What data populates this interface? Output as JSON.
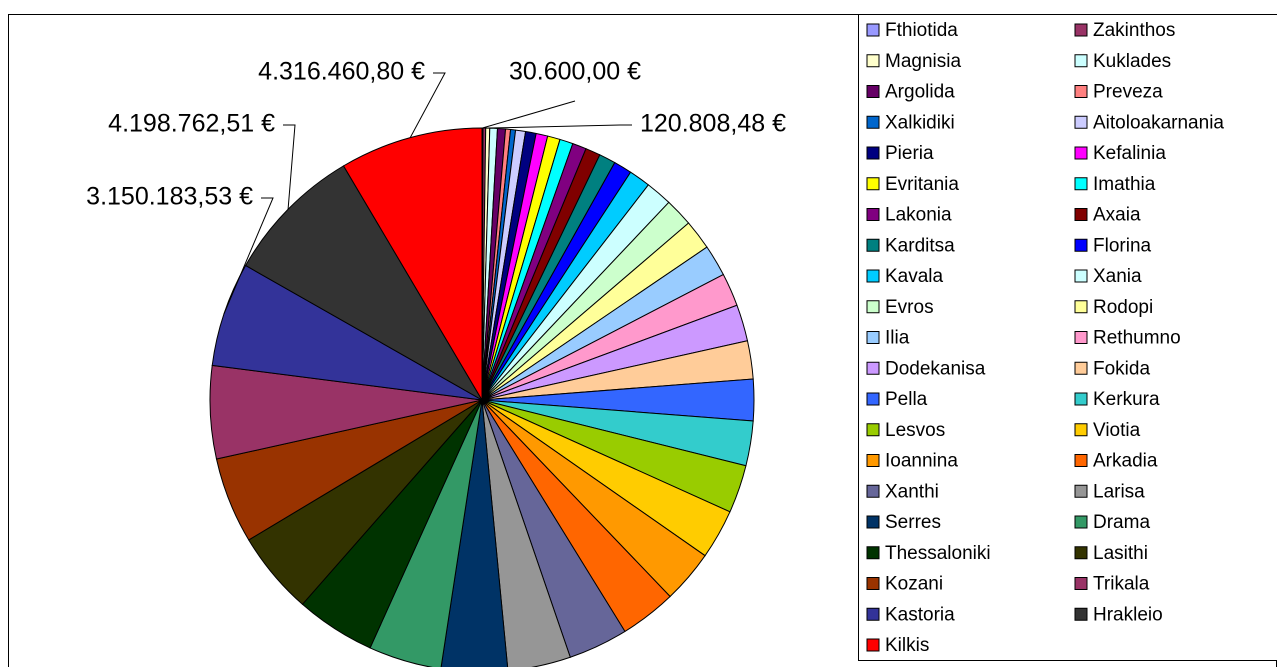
{
  "chart_data": {
    "type": "pie",
    "categories": [
      "Fthiotida",
      "Zakinthos",
      "Magnisia",
      "Kuklades",
      "Argolida",
      "Preveza",
      "Xalkidiki",
      "Aitoloakarnania",
      "Pieria",
      "Kefalinia",
      "Evritania",
      "Imathia",
      "Lakonia",
      "Axaia",
      "Karditsa",
      "Florina",
      "Kavala",
      "Xania",
      "Evros",
      "Rodopi",
      "Ilia",
      "Rethumno",
      "Dodekanisa",
      "Fokida",
      "Pella",
      "Kerkura",
      "Lesvos",
      "Viotia",
      "Ioannina",
      "Arkadia",
      "Xanthi",
      "Larisa",
      "Serres",
      "Drama",
      "Thessaloniki",
      "Lasithi",
      "Kozani",
      "Trikala",
      "Kastoria",
      "Hrakleio",
      "Kilkis"
    ],
    "values": [
      30600,
      80000,
      120808.48,
      230000,
      240000,
      150000,
      150000,
      300000,
      320000,
      350000,
      380000,
      400000,
      420000,
      450000,
      500000,
      550000,
      650000,
      800000,
      850000,
      900000,
      950000,
      1000000,
      1100000,
      1150000,
      1250000,
      1350000,
      1450000,
      1500000,
      1600000,
      1700000,
      1800000,
      1900000,
      2000000,
      2200000,
      2400000,
      2500000,
      2600000,
      2800000,
      3150183.53,
      4198762.51,
      4316460.8
    ],
    "value_labels": [
      "30.600,00 €",
      null,
      "120.808,48 €",
      null,
      null,
      null,
      null,
      null,
      null,
      null,
      null,
      null,
      null,
      null,
      null,
      null,
      null,
      null,
      null,
      null,
      null,
      null,
      null,
      null,
      null,
      null,
      null,
      null,
      null,
      null,
      null,
      null,
      null,
      null,
      null,
      null,
      null,
      null,
      "3.150.183,53 €",
      "4.198.762,51 €",
      "4.316.460,80 €"
    ],
    "colors": [
      "#9999ff",
      "#993366",
      "#ffffcc",
      "#ccffff",
      "#660066",
      "#ff8080",
      "#0066cc",
      "#ccccff",
      "#000080",
      "#ff00ff",
      "#ffff00",
      "#00ffff",
      "#800080",
      "#800000",
      "#008080",
      "#0000ff",
      "#00ccff",
      "#ccffff",
      "#ccffcc",
      "#ffff99",
      "#99ccff",
      "#ff99cc",
      "#cc99ff",
      "#ffcc99",
      "#3366ff",
      "#33cccc",
      "#99cc00",
      "#ffcc00",
      "#ff9900",
      "#ff6600",
      "#666699",
      "#969696",
      "#003366",
      "#339966",
      "#003300",
      "#333300",
      "#993300",
      "#993366",
      "#333399",
      "#333333",
      "#ff0000"
    ]
  }
}
